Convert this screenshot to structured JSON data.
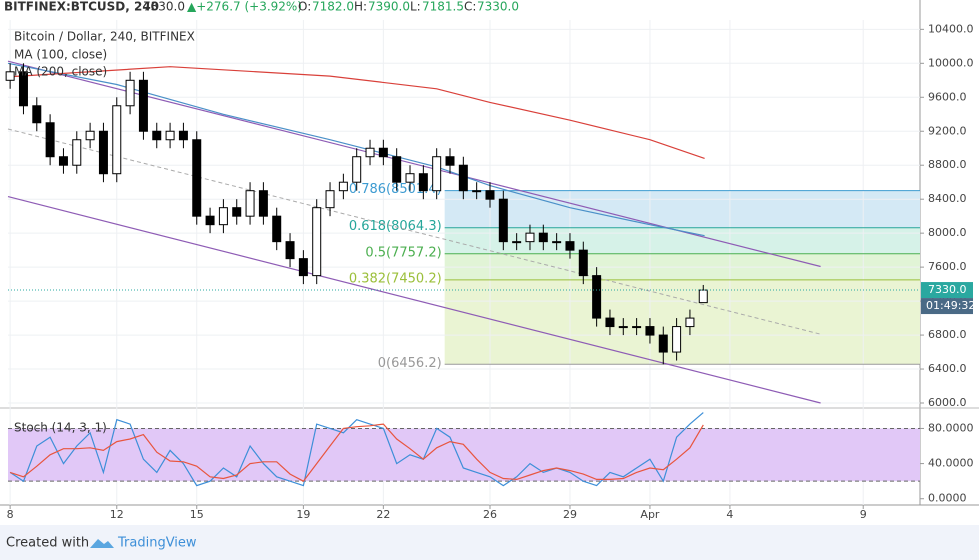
{
  "header": {
    "symbol": "BITFINEX:BTCUSD, 240",
    "last": "7330.0",
    "change": "▲+276.7 (+3.92%)",
    "o_label": "O:",
    "open": "7182.0",
    "h_label": "H:",
    "high": "7390.0",
    "l_label": "L:",
    "low": "7181.5",
    "c_label": "C:",
    "close": "7330.0"
  },
  "chart_data": [
    {
      "type": "candlestick",
      "title": "Bitcoin / Dollar, 240, BITFINEX",
      "x": [
        8,
        8.5,
        9,
        9.5,
        10,
        10.5,
        11,
        11.5,
        12,
        12.5,
        13,
        13.5,
        14,
        14.5,
        15,
        15.5,
        16,
        16.5,
        17,
        17.5,
        18,
        18.5,
        19,
        19.5,
        20,
        20.5,
        21,
        21.5,
        22,
        22.5,
        23,
        23.5,
        24,
        24.5,
        25,
        25.5,
        26,
        26.5,
        27,
        27.5,
        28,
        28.5,
        29,
        29.5,
        30,
        30.5,
        31,
        31.5,
        32,
        32.5,
        33,
        33.5,
        34
      ],
      "open": [
        9800,
        9900,
        9500,
        9300,
        8900,
        8800,
        9100,
        9200,
        8700,
        9500,
        9800,
        9200,
        9100,
        9200,
        9100,
        8200,
        8100,
        8300,
        8200,
        8500,
        8200,
        7900,
        7700,
        7500,
        8300,
        8500,
        8600,
        8900,
        9000,
        8900,
        8600,
        8700,
        8500,
        8900,
        8800,
        8500,
        8500,
        8400,
        7900,
        7900,
        8000,
        7900,
        7900,
        7800,
        7500,
        7000,
        6900,
        6900,
        6900,
        6800,
        6600,
        6900,
        7182
      ],
      "high": [
        10000,
        10000,
        9600,
        9400,
        9000,
        9200,
        9300,
        9300,
        9600,
        9900,
        9900,
        9300,
        9300,
        9300,
        9200,
        8300,
        8400,
        8400,
        8600,
        8600,
        8300,
        8000,
        7800,
        8400,
        8600,
        8700,
        9000,
        9100,
        9100,
        9000,
        8800,
        8800,
        9000,
        9000,
        8900,
        8600,
        8600,
        8500,
        8000,
        8100,
        8100,
        8000,
        8000,
        7900,
        7600,
        7100,
        7000,
        7000,
        7000,
        6900,
        7000,
        7100,
        7390
      ],
      "low": [
        9700,
        9400,
        9200,
        8800,
        8700,
        8700,
        9000,
        8600,
        8600,
        9400,
        9100,
        9000,
        9000,
        9000,
        8100,
        8000,
        8000,
        8100,
        8100,
        8100,
        7800,
        7600,
        7400,
        7400,
        8200,
        8400,
        8500,
        8800,
        8800,
        8500,
        8500,
        8400,
        8400,
        8700,
        8400,
        8400,
        8300,
        7800,
        7800,
        7800,
        7800,
        7800,
        7700,
        7400,
        6900,
        6800,
        6800,
        6800,
        6700,
        6456.2,
        6500,
        6800,
        7181.5
      ],
      "close": [
        9900,
        9500,
        9300,
        8900,
        8800,
        9100,
        9200,
        8700,
        9500,
        9800,
        9200,
        9100,
        9200,
        9100,
        8200,
        8100,
        8300,
        8200,
        8500,
        8200,
        7900,
        7700,
        7500,
        8300,
        8500,
        8600,
        8900,
        9000,
        8900,
        8600,
        8700,
        8500,
        8900,
        8800,
        8500,
        8500,
        8400,
        7900,
        7900,
        8000,
        7900,
        7900,
        7800,
        7500,
        7000,
        6900,
        6900,
        6900,
        6800,
        6600,
        6900,
        7000,
        7330
      ],
      "up_color": "#ffffff",
      "down_color": "#000000",
      "series": [
        {
          "name": "MA (100, close)",
          "color": "#4a90c8",
          "x": [
            7.92,
            12,
            16,
            20,
            22,
            24,
            26,
            29,
            32,
            34.05
          ],
          "values": [
            10000,
            9750,
            9400,
            9100,
            8940,
            8780,
            8560,
            8300,
            8100,
            7970
          ]
        },
        {
          "name": "MA (200, close)",
          "color": "#d9403a",
          "x": [
            7.92,
            14,
            20,
            24,
            26,
            29,
            32,
            34.05
          ],
          "values": [
            9840,
            9960,
            9850,
            9700,
            9540,
            9330,
            9100,
            8880
          ]
        }
      ],
      "trend_lines": [
        {
          "color": "#8e5cb5",
          "dashed": false,
          "x": [
            7.92,
            38.4
          ],
          "values": [
            10025,
            7608
          ]
        },
        {
          "color": "#aaaaaa",
          "dashed": true,
          "x": [
            7.92,
            38.4
          ],
          "values": [
            9227,
            6810
          ]
        },
        {
          "color": "#8e5cb5",
          "dashed": false,
          "x": [
            7.92,
            38.4
          ],
          "values": [
            8430,
            6000
          ]
        }
      ],
      "fib": {
        "x_start": 24.3,
        "levels": [
          {
            "label": "0(6456.2)",
            "value": 6456.2,
            "color": "#999999",
            "zone": "#eaf4d3"
          },
          {
            "label": "0.382(7450.2)",
            "value": 7450.2,
            "color": "#9bbf3a",
            "zone": "#e1f4d6"
          },
          {
            "label": "0.5(7757.2)",
            "value": 7757.2,
            "color": "#4caf50",
            "zone": "#d6f2e8"
          },
          {
            "label": "0.618(8064.3)",
            "value": 8064.3,
            "color": "#26a69a",
            "zone": "#d4e9f5"
          },
          {
            "label": "0.786(8501.4)",
            "value": 8501.4,
            "color": "#3d9bd1",
            "zone": null
          }
        ]
      },
      "last_price": {
        "value": 7330,
        "label": "7330.0",
        "timer": "01:49:32",
        "color": "#2aa8a0"
      },
      "xlim": [
        7.92,
        42.13
      ],
      "xticks": [
        8,
        12,
        15,
        19,
        22,
        26,
        29,
        {
          "value": 32,
          "label": "Apr"
        },
        {
          "value": 35,
          "label": "4"
        },
        {
          "value": 40,
          "label": "9"
        }
      ],
      "ylim": [
        5953,
        10510
      ],
      "yticks": [
        {
          "value": 6000,
          "label": "6000.0"
        },
        {
          "value": 6400,
          "label": "6400.0"
        },
        {
          "value": 6800,
          "label": "6800.0"
        },
        {
          "value": 7200,
          "label": "7200.0"
        },
        {
          "value": 7600,
          "label": "7600.0"
        },
        {
          "value": 8000,
          "label": "8000.0"
        },
        {
          "value": 8400,
          "label": "8400.0"
        },
        {
          "value": 8800,
          "label": "8800.0"
        },
        {
          "value": 9200,
          "label": "9200.0"
        },
        {
          "value": 9600,
          "label": "9600.0"
        },
        {
          "value": 10000,
          "label": "10000.0"
        },
        {
          "value": 10400,
          "label": "10400.0"
        }
      ]
    },
    {
      "type": "line",
      "title": "Stoch (14, 3, 1)",
      "x": [
        8,
        8.5,
        9,
        9.5,
        10,
        10.5,
        11,
        11.5,
        12,
        12.5,
        13,
        13.5,
        14,
        14.5,
        15,
        15.5,
        16,
        16.5,
        17,
        17.5,
        18,
        18.5,
        19,
        19.5,
        20,
        20.5,
        21,
        21.5,
        22,
        22.5,
        23,
        23.5,
        24,
        24.5,
        25,
        25.5,
        26,
        26.5,
        27,
        27.5,
        28,
        28.5,
        29,
        29.5,
        30,
        30.5,
        31,
        31.5,
        32,
        32.5,
        33,
        33.5,
        34
      ],
      "series": [
        {
          "color": "#3d8fd8",
          "values": [
            30,
            20,
            60,
            70,
            40,
            60,
            75,
            30,
            90,
            85,
            45,
            30,
            55,
            40,
            15,
            20,
            35,
            25,
            60,
            40,
            25,
            20,
            15,
            85,
            80,
            75,
            90,
            85,
            80,
            40,
            50,
            45,
            80,
            70,
            35,
            30,
            25,
            15,
            25,
            40,
            30,
            35,
            30,
            20,
            15,
            30,
            25,
            35,
            45,
            20,
            70,
            85,
            98
          ]
        },
        {
          "color": "#e8553e",
          "values": [
            30,
            25,
            37,
            50,
            57,
            57,
            58,
            55,
            65,
            68,
            73,
            53,
            43,
            42,
            37,
            25,
            23,
            27,
            40,
            42,
            42,
            28,
            20,
            40,
            60,
            80,
            82,
            83,
            85,
            68,
            57,
            45,
            58,
            65,
            62,
            45,
            30,
            23,
            22,
            27,
            32,
            35,
            32,
            28,
            22,
            22,
            23,
            30,
            35,
            33,
            45,
            58,
            84
          ]
        }
      ],
      "band": [
        20,
        80
      ],
      "band_color": "#e1c8f7",
      "ylim": [
        -6,
        101
      ],
      "yticks": [
        {
          "value": 0,
          "label": "0.0000"
        },
        {
          "value": 40,
          "label": "40.0000"
        },
        {
          "value": 80,
          "label": "80.0000"
        }
      ]
    }
  ],
  "footer": {
    "created": "Created with",
    "brand": "TradingView"
  }
}
